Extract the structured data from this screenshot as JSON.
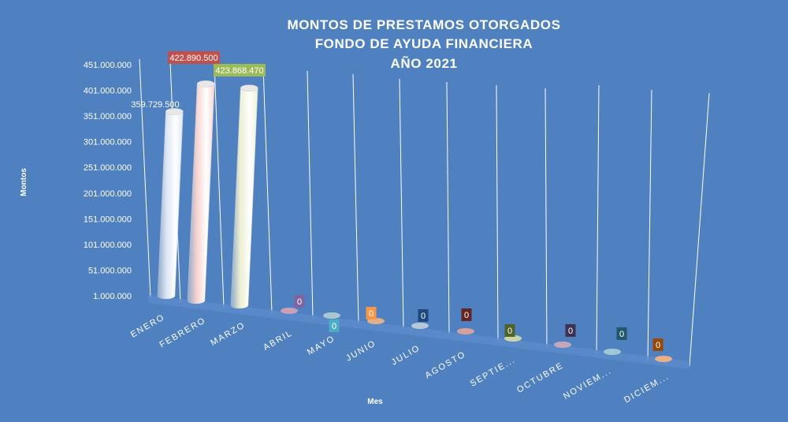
{
  "chart_data": {
    "type": "bar",
    "style": "3d-cylinder",
    "title": [
      "MONTOS  DE  PRESTAMOS  OTORGADOS",
      "FONDO  DE  AYUDA  FINANCIERA",
      "AÑO  2021"
    ],
    "xlabel": "Mes",
    "ylabel": "Montos",
    "ylim": [
      1000000,
      451000000
    ],
    "yticks": [
      "1.000.000",
      "51.000.000",
      "101.000.000",
      "151.000.000",
      "201.000.000",
      "251.000.000",
      "301.000.000",
      "351.000.000",
      "401.000.000",
      "451.000.000"
    ],
    "categories": [
      "ENERO",
      "FEBRERO",
      "MARZO",
      "ABRIL",
      "MAYO",
      "JUNIO",
      "JULIO",
      "AGOSTO",
      "SEPTIE...",
      "OCTUBRE",
      "NOVIEM...",
      "DICIEM..."
    ],
    "values": [
      359729500,
      422890500,
      423868470,
      0,
      0,
      0,
      0,
      0,
      0,
      0,
      0,
      0
    ],
    "value_labels": [
      "359.729.500",
      "422.890.500",
      "423.868.470",
      "0",
      "0",
      "0",
      "0",
      "0",
      "0",
      "0",
      "0",
      "0"
    ],
    "bar_colors": [
      "#dce6f4",
      "#f7d4d0",
      "#eef0d2",
      "#c9a0b8",
      "#a9c6d4",
      "#e0b088",
      "#b8c8d8",
      "#d4a0a0",
      "#c9d4a8",
      "#c4a8b8",
      "#9ec8d4",
      "#e8b088"
    ],
    "label_box_colors": [
      "",
      "#c0504d",
      "#9bbb59",
      "#8064a2",
      "#4bacc6",
      "#f79646",
      "#1f497d",
      "#632523",
      "#4f6228",
      "#3f3151",
      "#215968",
      "#974806"
    ],
    "grid": true
  }
}
